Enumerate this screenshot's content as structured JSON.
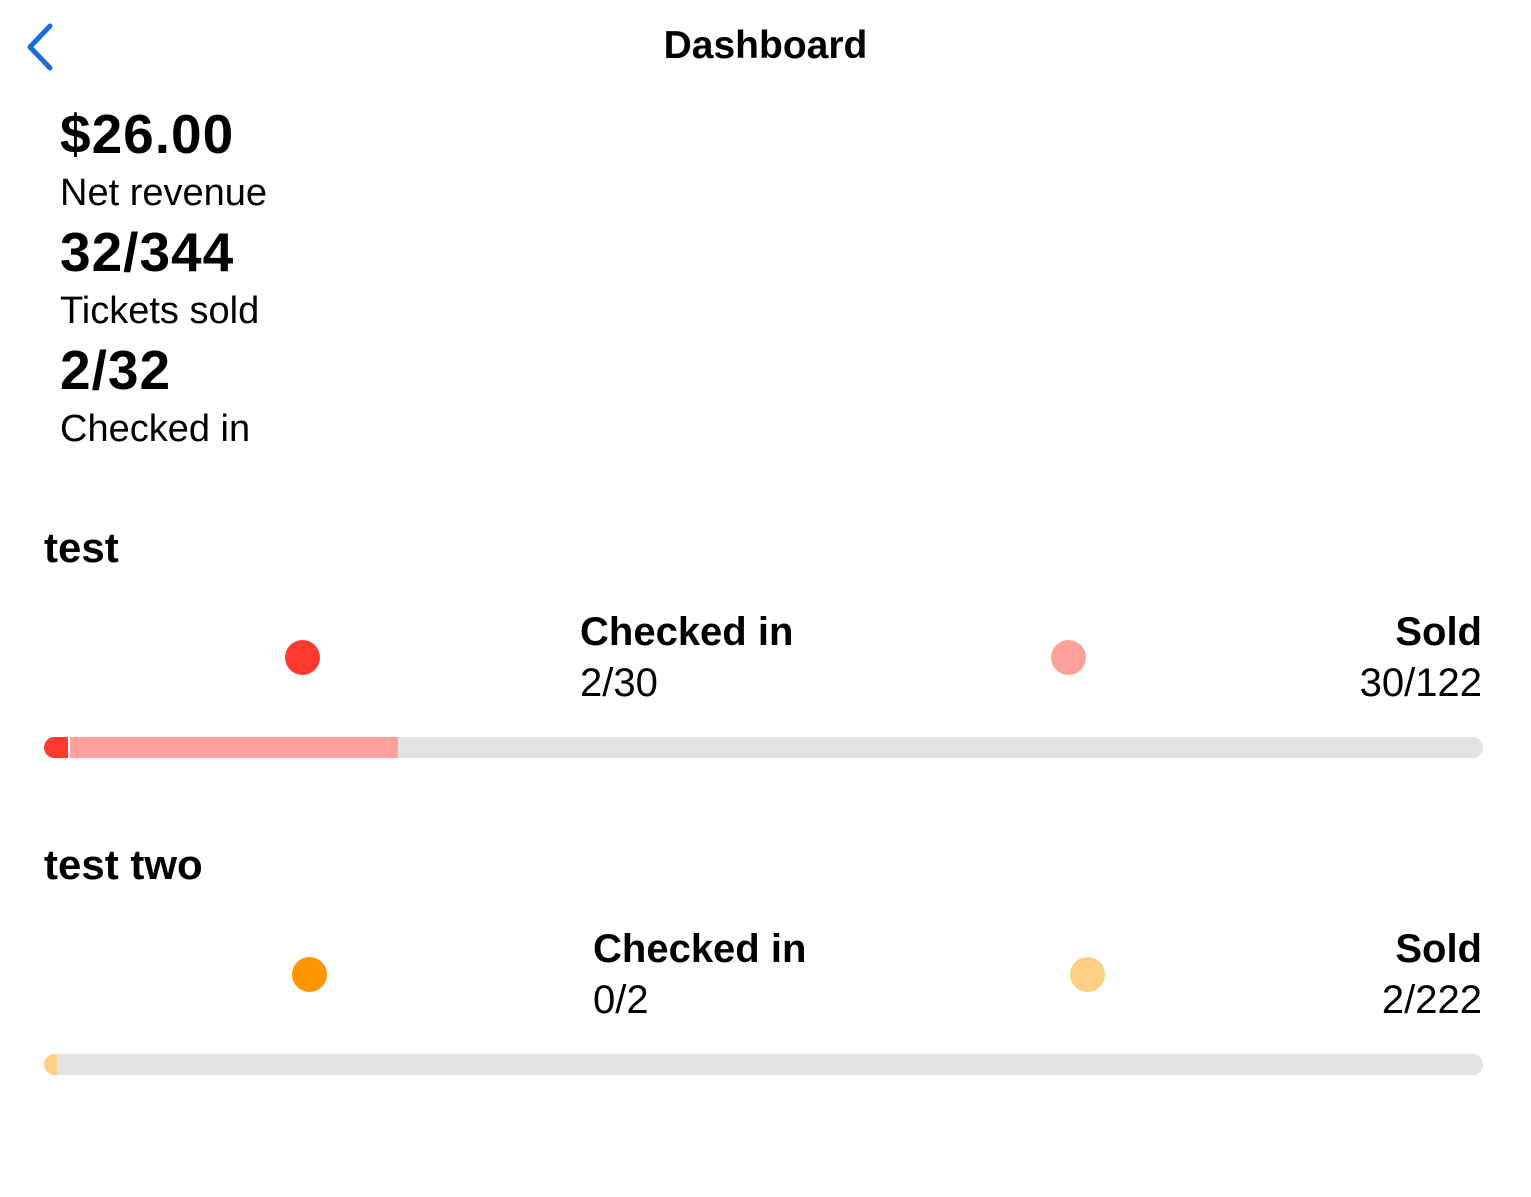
{
  "nav": {
    "title": "Dashboard",
    "back_icon": "chevron-left-icon",
    "accent_color": "#1a6dd8"
  },
  "summary": {
    "net_revenue": {
      "value": "$26.00",
      "label": "Net revenue"
    },
    "tickets_sold": {
      "value": "32/344",
      "label": "Tickets sold"
    },
    "checked_in": {
      "value": "2/32",
      "label": "Checked in"
    }
  },
  "events": [
    {
      "name": "test",
      "checked_in": {
        "label": "Checked in",
        "value": "2/30",
        "color": "#ff3b30",
        "count": 2
      },
      "sold": {
        "label": "Sold",
        "value": "30/122",
        "color": "#ffa19b",
        "count": 30,
        "total": 122
      }
    },
    {
      "name": "test two",
      "checked_in": {
        "label": "Checked in",
        "value": "0/2",
        "color": "#ff9500",
        "count": 0
      },
      "sold": {
        "label": "Sold",
        "value": "2/222",
        "color": "#ffcf86",
        "count": 2,
        "total": 222
      }
    }
  ]
}
